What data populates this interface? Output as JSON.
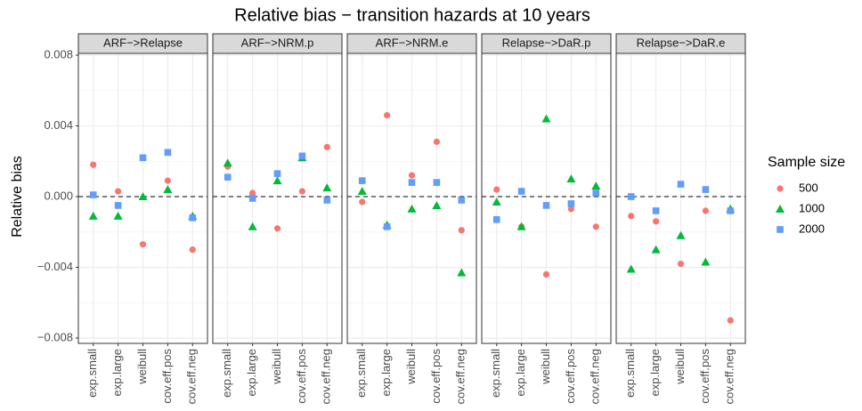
{
  "chart_data": {
    "type": "scatter",
    "title": "Relative bias − transition hazards at 10 years",
    "ylabel": "Relative bias",
    "categories": [
      "exp.small",
      "exp.large",
      "weibull",
      "cov.eff.pos",
      "cov.eff.neg"
    ],
    "ylim": [
      -0.0083,
      0.0081
    ],
    "yticks": [
      0.008,
      0.004,
      {
        "value": 0,
        "label": "0.000"
      },
      {
        "value": -0.004,
        "label": "−0.004"
      },
      {
        "value": -0.008,
        "label": "−0.008"
      }
    ],
    "grid": true,
    "reference_line": 0,
    "legend_title": "Sample size",
    "legend": "right",
    "series": [
      {
        "name": "500",
        "color": "#F8766D",
        "shape": "circle"
      },
      {
        "name": "1000",
        "color": "#00BA38",
        "shape": "triangle"
      },
      {
        "name": "2000",
        "color": "#619CFF",
        "shape": "square"
      }
    ],
    "panels": [
      {
        "title": "ARF−>Relapse",
        "values": [
          [
            0.0018,
            0.0003,
            -0.0027,
            0.0009,
            -0.003
          ],
          [
            -0.0011,
            -0.0011,
            0.0,
            0.0004,
            -0.0011
          ],
          [
            0.0001,
            -0.0005,
            0.0022,
            0.0025,
            -0.0012
          ]
        ]
      },
      {
        "title": "ARF−>NRM.p",
        "values": [
          [
            0.0017,
            0.0002,
            -0.0018,
            0.0003,
            0.0028
          ],
          [
            0.0019,
            -0.0017,
            0.0009,
            0.0022,
            0.0005
          ],
          [
            0.0011,
            -0.0001,
            0.0013,
            0.0023,
            -0.0002
          ]
        ]
      },
      {
        "title": "ARF−>NRM.e",
        "values": [
          [
            -0.0003,
            0.0046,
            0.0012,
            0.0031,
            -0.0019
          ],
          [
            0.0003,
            -0.0016,
            -0.0007,
            -0.0005,
            -0.0043
          ],
          [
            0.0009,
            -0.0017,
            0.0008,
            0.0008,
            -0.0002
          ]
        ]
      },
      {
        "title": "Relapse−>DaR.p",
        "values": [
          [
            0.0004,
            -0.0017,
            -0.0044,
            -0.0007,
            -0.0017
          ],
          [
            -0.0003,
            -0.0017,
            0.0044,
            0.001,
            0.0006
          ],
          [
            -0.0013,
            0.0003,
            -0.0005,
            -0.0004,
            0.0002
          ]
        ]
      },
      {
        "title": "Relapse−>DaR.e",
        "values": [
          [
            -0.0011,
            -0.0014,
            -0.0038,
            -0.0008,
            -0.007
          ],
          [
            -0.0041,
            -0.003,
            -0.0022,
            -0.0037,
            -0.0007
          ],
          [
            0.0,
            -0.0008,
            0.0007,
            0.0004,
            -0.0008
          ]
        ]
      }
    ]
  }
}
